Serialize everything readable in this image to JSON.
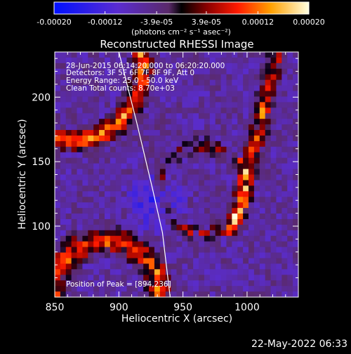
{
  "chart_data": {
    "type": "heatmap",
    "title": "Reconstructed RHESSI Image",
    "xlabel": "Heliocentric X (arcsec)",
    "ylabel": "Heliocentric Y (arcsec)",
    "xlim": [
      850,
      1040
    ],
    "ylim": [
      45,
      235
    ],
    "x_ticks": [
      "850",
      "900",
      "950",
      "1000"
    ],
    "y_ticks": [
      "100",
      "150",
      "200"
    ],
    "x_tick_values": [
      850,
      900,
      950,
      1000
    ],
    "y_tick_values": [
      100,
      150,
      200
    ],
    "colorbar": {
      "range": [
        -0.0002,
        0.0002
      ],
      "tick_values": [
        -0.0002,
        -0.00012,
        -3.9e-05,
        3.9e-05,
        0.00012,
        0.0002
      ],
      "tick_labels": [
        "-0.00020",
        "-0.00012",
        "-3.9e-05",
        "3.9e-05",
        "0.00012",
        "0.00020"
      ],
      "unit": "(photons cm⁻² s⁻¹ asec⁻²)"
    },
    "annotations": [
      "28-Jun-2015 06:14:20.000 to 06:20:20.000",
      "Detectors: 3F 5F 6F 7F 8F 9F, Att 0",
      "Energy Range: 25.0 - 50.0 keV",
      "Clean    Total counts: 8.70e+03",
      "Position of Peak = [894,236]"
    ],
    "limb_curve": [
      [
        900,
        235
      ],
      [
        914,
        180
      ],
      [
        926,
        130
      ],
      [
        934,
        95
      ],
      [
        940,
        45
      ]
    ],
    "timestamp": "22-May-2022 06:33"
  }
}
